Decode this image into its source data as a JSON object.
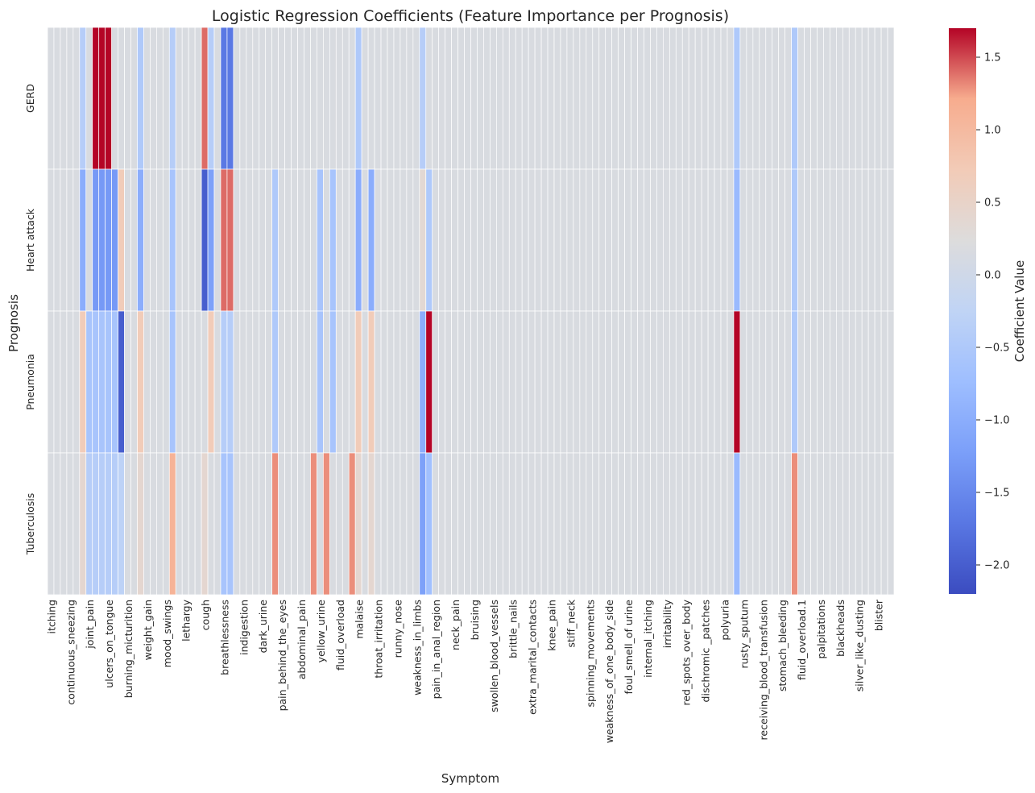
{
  "chart_data": {
    "type": "heatmap",
    "title": "Logistic Regression Coefficients (Feature Importance per Prognosis)",
    "xlabel": "Symptom",
    "ylabel": "Prognosis",
    "colorbar_label": "Coefficient Value",
    "colormap": "coolwarm",
    "color_range": [
      -2.2,
      1.7
    ],
    "colorbar_ticks": [
      "1.5",
      "1.0",
      "0.5",
      "0.0",
      "−0.5",
      "−1.0",
      "−1.5",
      "−2.0"
    ],
    "colorbar_tick_values": [
      1.5,
      1.0,
      0.5,
      0.0,
      -0.5,
      -1.0,
      -1.5,
      -2.0
    ],
    "rows": [
      "GERD",
      "Heart attack",
      "Pneumonia",
      "Tuberculosis"
    ],
    "num_columns": 132,
    "default_value": 0.15,
    "x_tick_labels": [
      {
        "index": 0,
        "label": "itching"
      },
      {
        "index": 2,
        "label": "continuous_sneezing"
      },
      {
        "index": 4,
        "label": "joint_pain"
      },
      {
        "index": 6,
        "label": "ulcers_on_tongue"
      },
      {
        "index": 8,
        "label": "burning_micturition"
      },
      {
        "index": 10,
        "label": "weight_gain"
      },
      {
        "index": 12,
        "label": "mood_swings"
      },
      {
        "index": 14,
        "label": "lethargy"
      },
      {
        "index": 16,
        "label": "cough"
      },
      {
        "index": 18,
        "label": "breathlessness"
      },
      {
        "index": 20,
        "label": "indigestion"
      },
      {
        "index": 22,
        "label": "dark_urine"
      },
      {
        "index": 24,
        "label": "pain_behind_the_eyes"
      },
      {
        "index": 26,
        "label": "abdominal_pain"
      },
      {
        "index": 28,
        "label": "yellow_urine"
      },
      {
        "index": 30,
        "label": "fluid_overload"
      },
      {
        "index": 32,
        "label": "malaise"
      },
      {
        "index": 34,
        "label": "throat_irritation"
      },
      {
        "index": 36,
        "label": "runny_nose"
      },
      {
        "index": 38,
        "label": "weakness_in_limbs"
      },
      {
        "index": 40,
        "label": "pain_in_anal_region"
      },
      {
        "index": 42,
        "label": "neck_pain"
      },
      {
        "index": 44,
        "label": "bruising"
      },
      {
        "index": 46,
        "label": "swollen_blood_vessels"
      },
      {
        "index": 48,
        "label": "brittle_nails"
      },
      {
        "index": 50,
        "label": "extra_marital_contacts"
      },
      {
        "index": 52,
        "label": "knee_pain"
      },
      {
        "index": 54,
        "label": "stiff_neck"
      },
      {
        "index": 56,
        "label": "spinning_movements"
      },
      {
        "index": 58,
        "label": "weakness_of_one_body_side"
      },
      {
        "index": 60,
        "label": "foul_smell_of urine"
      },
      {
        "index": 62,
        "label": "internal_itching"
      },
      {
        "index": 64,
        "label": "irritability"
      },
      {
        "index": 66,
        "label": "red_spots_over_body"
      },
      {
        "index": 68,
        "label": "dischromic _patches"
      },
      {
        "index": 70,
        "label": "polyuria"
      },
      {
        "index": 72,
        "label": "rusty_sputum"
      },
      {
        "index": 74,
        "label": "receiving_blood_transfusion"
      },
      {
        "index": 76,
        "label": "stomach_bleeding"
      },
      {
        "index": 78,
        "label": "fluid_overload.1"
      },
      {
        "index": 80,
        "label": "palpitations"
      },
      {
        "index": 82,
        "label": "blackheads"
      },
      {
        "index": 84,
        "label": "silver_like_dusting"
      },
      {
        "index": 86,
        "label": "blister"
      }
    ],
    "nonzero_cells": {
      "GERD": [
        {
          "col": 5,
          "value": -0.4
        },
        {
          "col": 7,
          "value": 1.7
        },
        {
          "col": 8,
          "value": 1.7
        },
        {
          "col": 9,
          "value": 1.7
        },
        {
          "col": 10,
          "value": 0.15
        },
        {
          "col": 14,
          "value": -0.5
        },
        {
          "col": 19,
          "value": -0.4
        },
        {
          "col": 24,
          "value": 1.4
        },
        {
          "col": 25,
          "value": -0.4
        },
        {
          "col": 27,
          "value": -1.7
        },
        {
          "col": 28,
          "value": -1.7
        },
        {
          "col": 48,
          "value": -0.5
        },
        {
          "col": 58,
          "value": -0.4
        },
        {
          "col": 107,
          "value": -0.5
        },
        {
          "col": 116,
          "value": -0.5
        }
      ],
      "Heart attack": [
        {
          "col": 5,
          "value": -1.0
        },
        {
          "col": 7,
          "value": -1.3
        },
        {
          "col": 8,
          "value": -1.3
        },
        {
          "col": 9,
          "value": -1.3
        },
        {
          "col": 10,
          "value": -1.3
        },
        {
          "col": 11,
          "value": 0.7
        },
        {
          "col": 14,
          "value": -1.0
        },
        {
          "col": 19,
          "value": -0.6
        },
        {
          "col": 24,
          "value": -2.0
        },
        {
          "col": 25,
          "value": -1.2
        },
        {
          "col": 27,
          "value": 1.4
        },
        {
          "col": 28,
          "value": 1.4
        },
        {
          "col": 35,
          "value": -0.5
        },
        {
          "col": 42,
          "value": -0.6
        },
        {
          "col": 44,
          "value": -0.6
        },
        {
          "col": 48,
          "value": -1.0
        },
        {
          "col": 50,
          "value": -1.0
        },
        {
          "col": 58,
          "value": 0.35
        },
        {
          "col": 59,
          "value": -0.5
        },
        {
          "col": 107,
          "value": -0.8
        },
        {
          "col": 116,
          "value": -0.5
        }
      ],
      "Pneumonia": [
        {
          "col": 5,
          "value": 0.7
        },
        {
          "col": 6,
          "value": -0.6
        },
        {
          "col": 7,
          "value": -0.6
        },
        {
          "col": 8,
          "value": -0.6
        },
        {
          "col": 9,
          "value": -0.6
        },
        {
          "col": 10,
          "value": -0.6
        },
        {
          "col": 11,
          "value": -2.0
        },
        {
          "col": 14,
          "value": 0.7
        },
        {
          "col": 19,
          "value": -0.6
        },
        {
          "col": 25,
          "value": 0.7
        },
        {
          "col": 27,
          "value": -0.4
        },
        {
          "col": 28,
          "value": -0.4
        },
        {
          "col": 35,
          "value": -0.5
        },
        {
          "col": 42,
          "value": -0.6
        },
        {
          "col": 44,
          "value": -0.6
        },
        {
          "col": 48,
          "value": 0.7
        },
        {
          "col": 50,
          "value": 0.7
        },
        {
          "col": 58,
          "value": -1.0
        },
        {
          "col": 59,
          "value": 1.7
        },
        {
          "col": 107,
          "value": 1.7
        },
        {
          "col": 116,
          "value": -0.5
        }
      ],
      "Tuberculosis": [
        {
          "col": 5,
          "value": 0.4
        },
        {
          "col": 6,
          "value": -0.4
        },
        {
          "col": 7,
          "value": -0.4
        },
        {
          "col": 8,
          "value": -0.4
        },
        {
          "col": 9,
          "value": -0.4
        },
        {
          "col": 10,
          "value": -0.4
        },
        {
          "col": 11,
          "value": -0.3
        },
        {
          "col": 14,
          "value": 0.4
        },
        {
          "col": 19,
          "value": 1.1
        },
        {
          "col": 24,
          "value": 0.4
        },
        {
          "col": 27,
          "value": -0.6
        },
        {
          "col": 28,
          "value": -0.6
        },
        {
          "col": 35,
          "value": 1.3
        },
        {
          "col": 41,
          "value": 1.3
        },
        {
          "col": 43,
          "value": 1.3
        },
        {
          "col": 47,
          "value": 1.3
        },
        {
          "col": 48,
          "value": 0.4
        },
        {
          "col": 50,
          "value": 0.4
        },
        {
          "col": 58,
          "value": -1.2
        },
        {
          "col": 59,
          "value": -0.7
        },
        {
          "col": 107,
          "value": -0.8
        },
        {
          "col": 116,
          "value": 1.3
        }
      ]
    }
  }
}
